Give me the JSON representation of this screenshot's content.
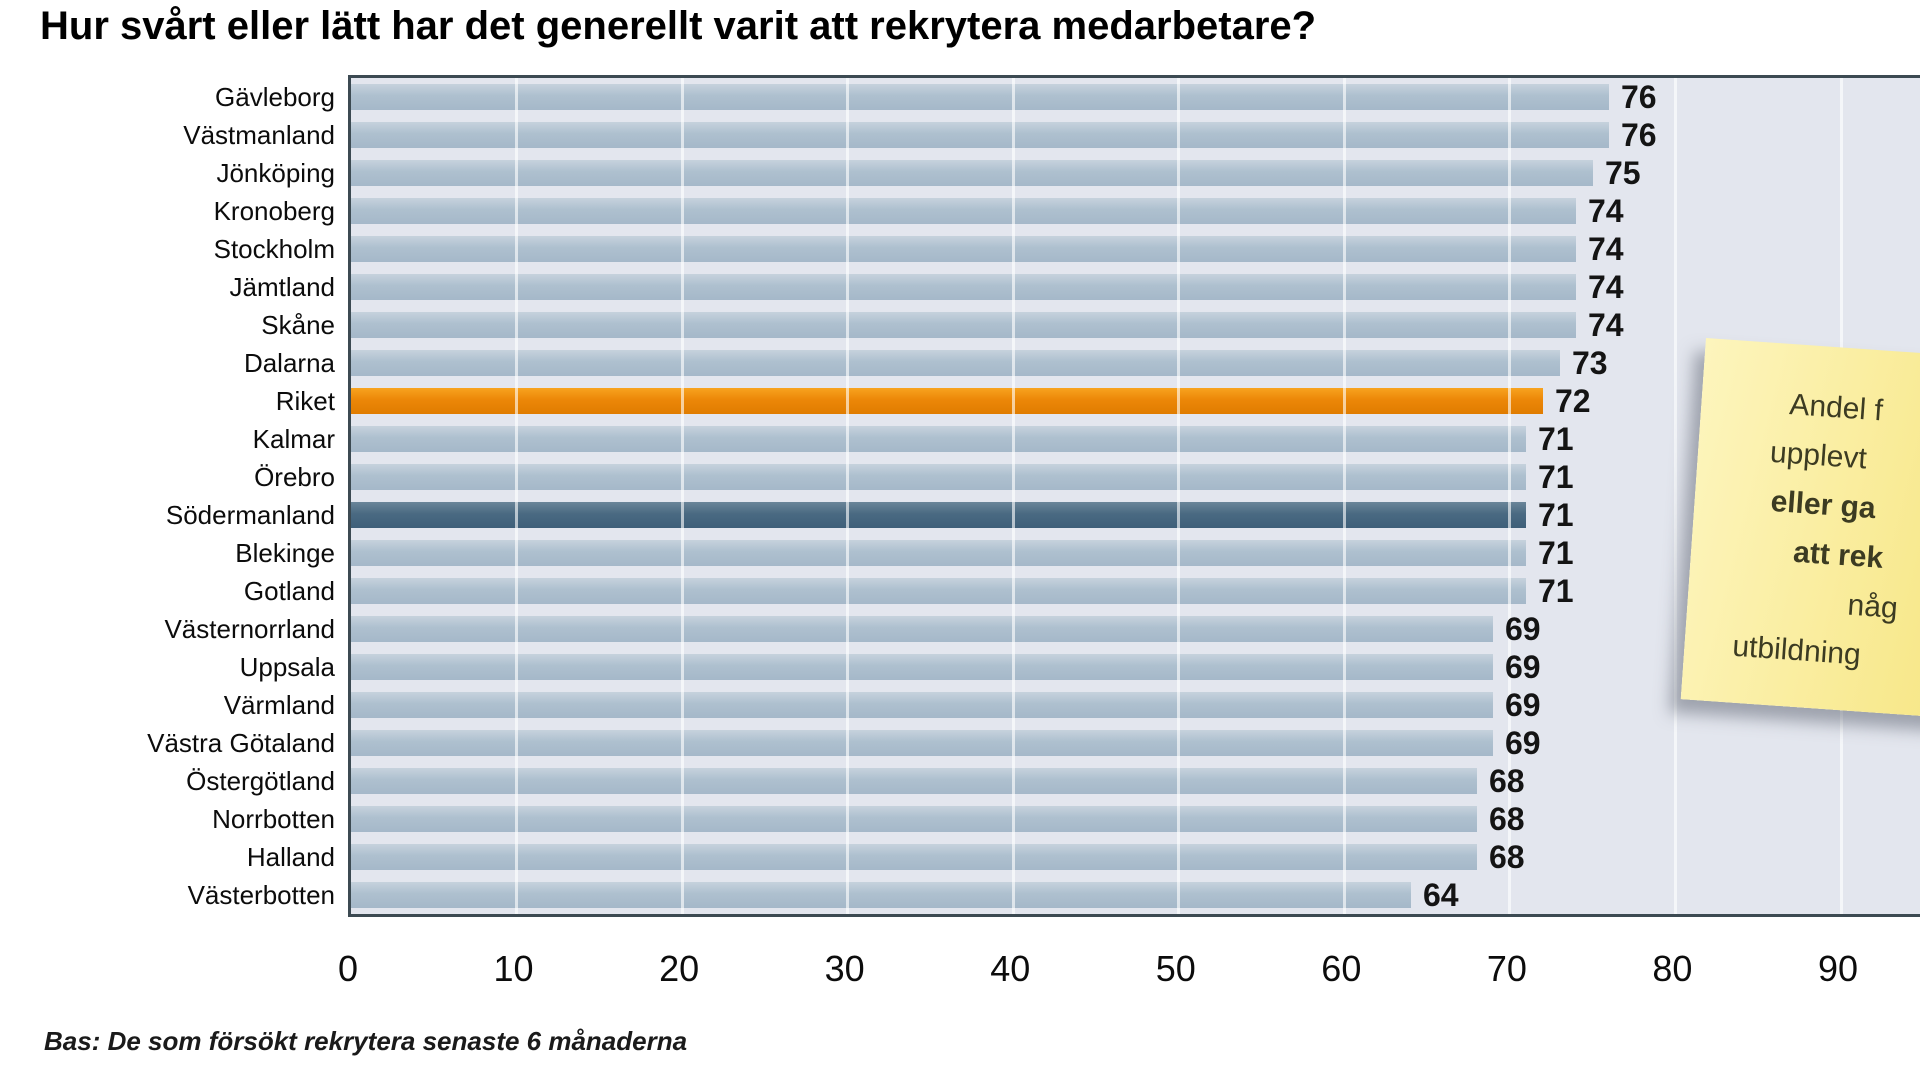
{
  "title": "Hur svårt eller lätt har det generellt varit att rekrytera medarbetare?",
  "footnote": "Bas: De som försökt rekrytera senaste 6 månaderna",
  "sticky_note": {
    "background_color": "#F8E98F",
    "lines": [
      {
        "text": "Andel f",
        "bold": false
      },
      {
        "text": "upplevt",
        "bold": false
      },
      {
        "text": "eller ga",
        "bold": true
      },
      {
        "text": "att rek",
        "bold": true
      },
      {
        "text": "någ",
        "bold": false
      },
      {
        "text": "utbildning",
        "bold": false
      }
    ]
  },
  "colors": {
    "plot_background": "#E3E6EE",
    "bar_default": "#AEC0CF",
    "bar_national": "#EC8708",
    "bar_selected": "#4A6A82",
    "axis_border": "#3C4A52",
    "gridline": "#FFFFFF"
  },
  "chart_data": {
    "type": "bar",
    "orientation": "horizontal",
    "title": "Hur svårt eller lätt har det generellt varit att rekrytera medarbetare?",
    "xlabel": "",
    "ylabel": "",
    "xlim": [
      0,
      95
    ],
    "x_ticks": [
      0,
      10,
      20,
      30,
      40,
      50,
      60,
      70,
      80,
      90
    ],
    "grid": "vertical-white",
    "legend": "none",
    "bars": [
      {
        "label": "Gävleborg",
        "value": 76,
        "style": "default"
      },
      {
        "label": "Västmanland",
        "value": 76,
        "style": "default"
      },
      {
        "label": "Jönköping",
        "value": 75,
        "style": "default"
      },
      {
        "label": "Kronoberg",
        "value": 74,
        "style": "default"
      },
      {
        "label": "Stockholm",
        "value": 74,
        "style": "default"
      },
      {
        "label": "Jämtland",
        "value": 74,
        "style": "default"
      },
      {
        "label": "Skåne",
        "value": 74,
        "style": "default"
      },
      {
        "label": "Dalarna",
        "value": 73,
        "style": "default"
      },
      {
        "label": "Riket",
        "value": 72,
        "style": "national"
      },
      {
        "label": "Kalmar",
        "value": 71,
        "style": "default"
      },
      {
        "label": "Örebro",
        "value": 71,
        "style": "default"
      },
      {
        "label": "Södermanland",
        "value": 71,
        "style": "selected"
      },
      {
        "label": "Blekinge",
        "value": 71,
        "style": "default"
      },
      {
        "label": "Gotland",
        "value": 71,
        "style": "default"
      },
      {
        "label": "Västernorrland",
        "value": 69,
        "style": "default"
      },
      {
        "label": "Uppsala",
        "value": 69,
        "style": "default"
      },
      {
        "label": "Värmland",
        "value": 69,
        "style": "default"
      },
      {
        "label": "Västra Götaland",
        "value": 69,
        "style": "default"
      },
      {
        "label": "Östergötland",
        "value": 68,
        "style": "default"
      },
      {
        "label": "Norrbotten",
        "value": 68,
        "style": "default"
      },
      {
        "label": "Halland",
        "value": 68,
        "style": "default"
      },
      {
        "label": "Västerbotten",
        "value": 64,
        "style": "default"
      }
    ]
  }
}
